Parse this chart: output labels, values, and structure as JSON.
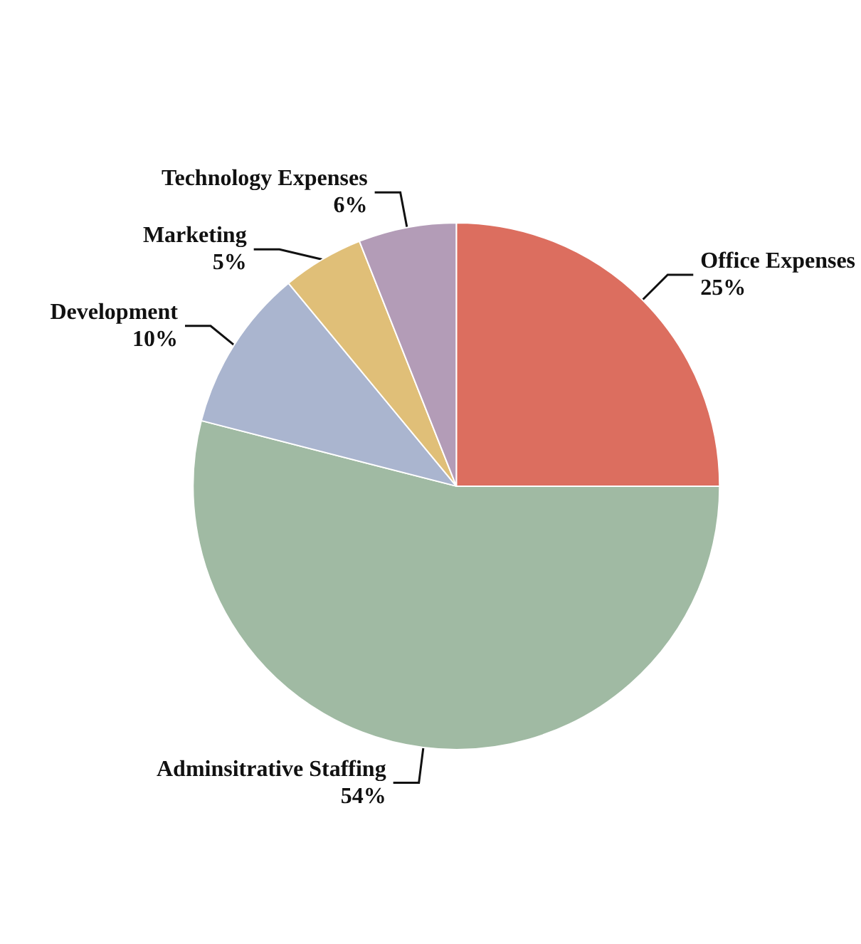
{
  "chart_data": {
    "type": "pie",
    "categories": [
      "Office Expenses",
      "Adminsitrative Staffing",
      "Development",
      "Marketing",
      "Technology Expenses"
    ],
    "values": [
      25,
      54,
      10,
      5,
      6
    ],
    "value_labels": [
      "25%",
      "54%",
      "10%",
      "5%",
      "6%"
    ],
    "colors": [
      "#dc6e5f",
      "#a0baa3",
      "#aab5cf",
      "#e0bf78",
      "#b39cb7"
    ],
    "legend": false
  }
}
